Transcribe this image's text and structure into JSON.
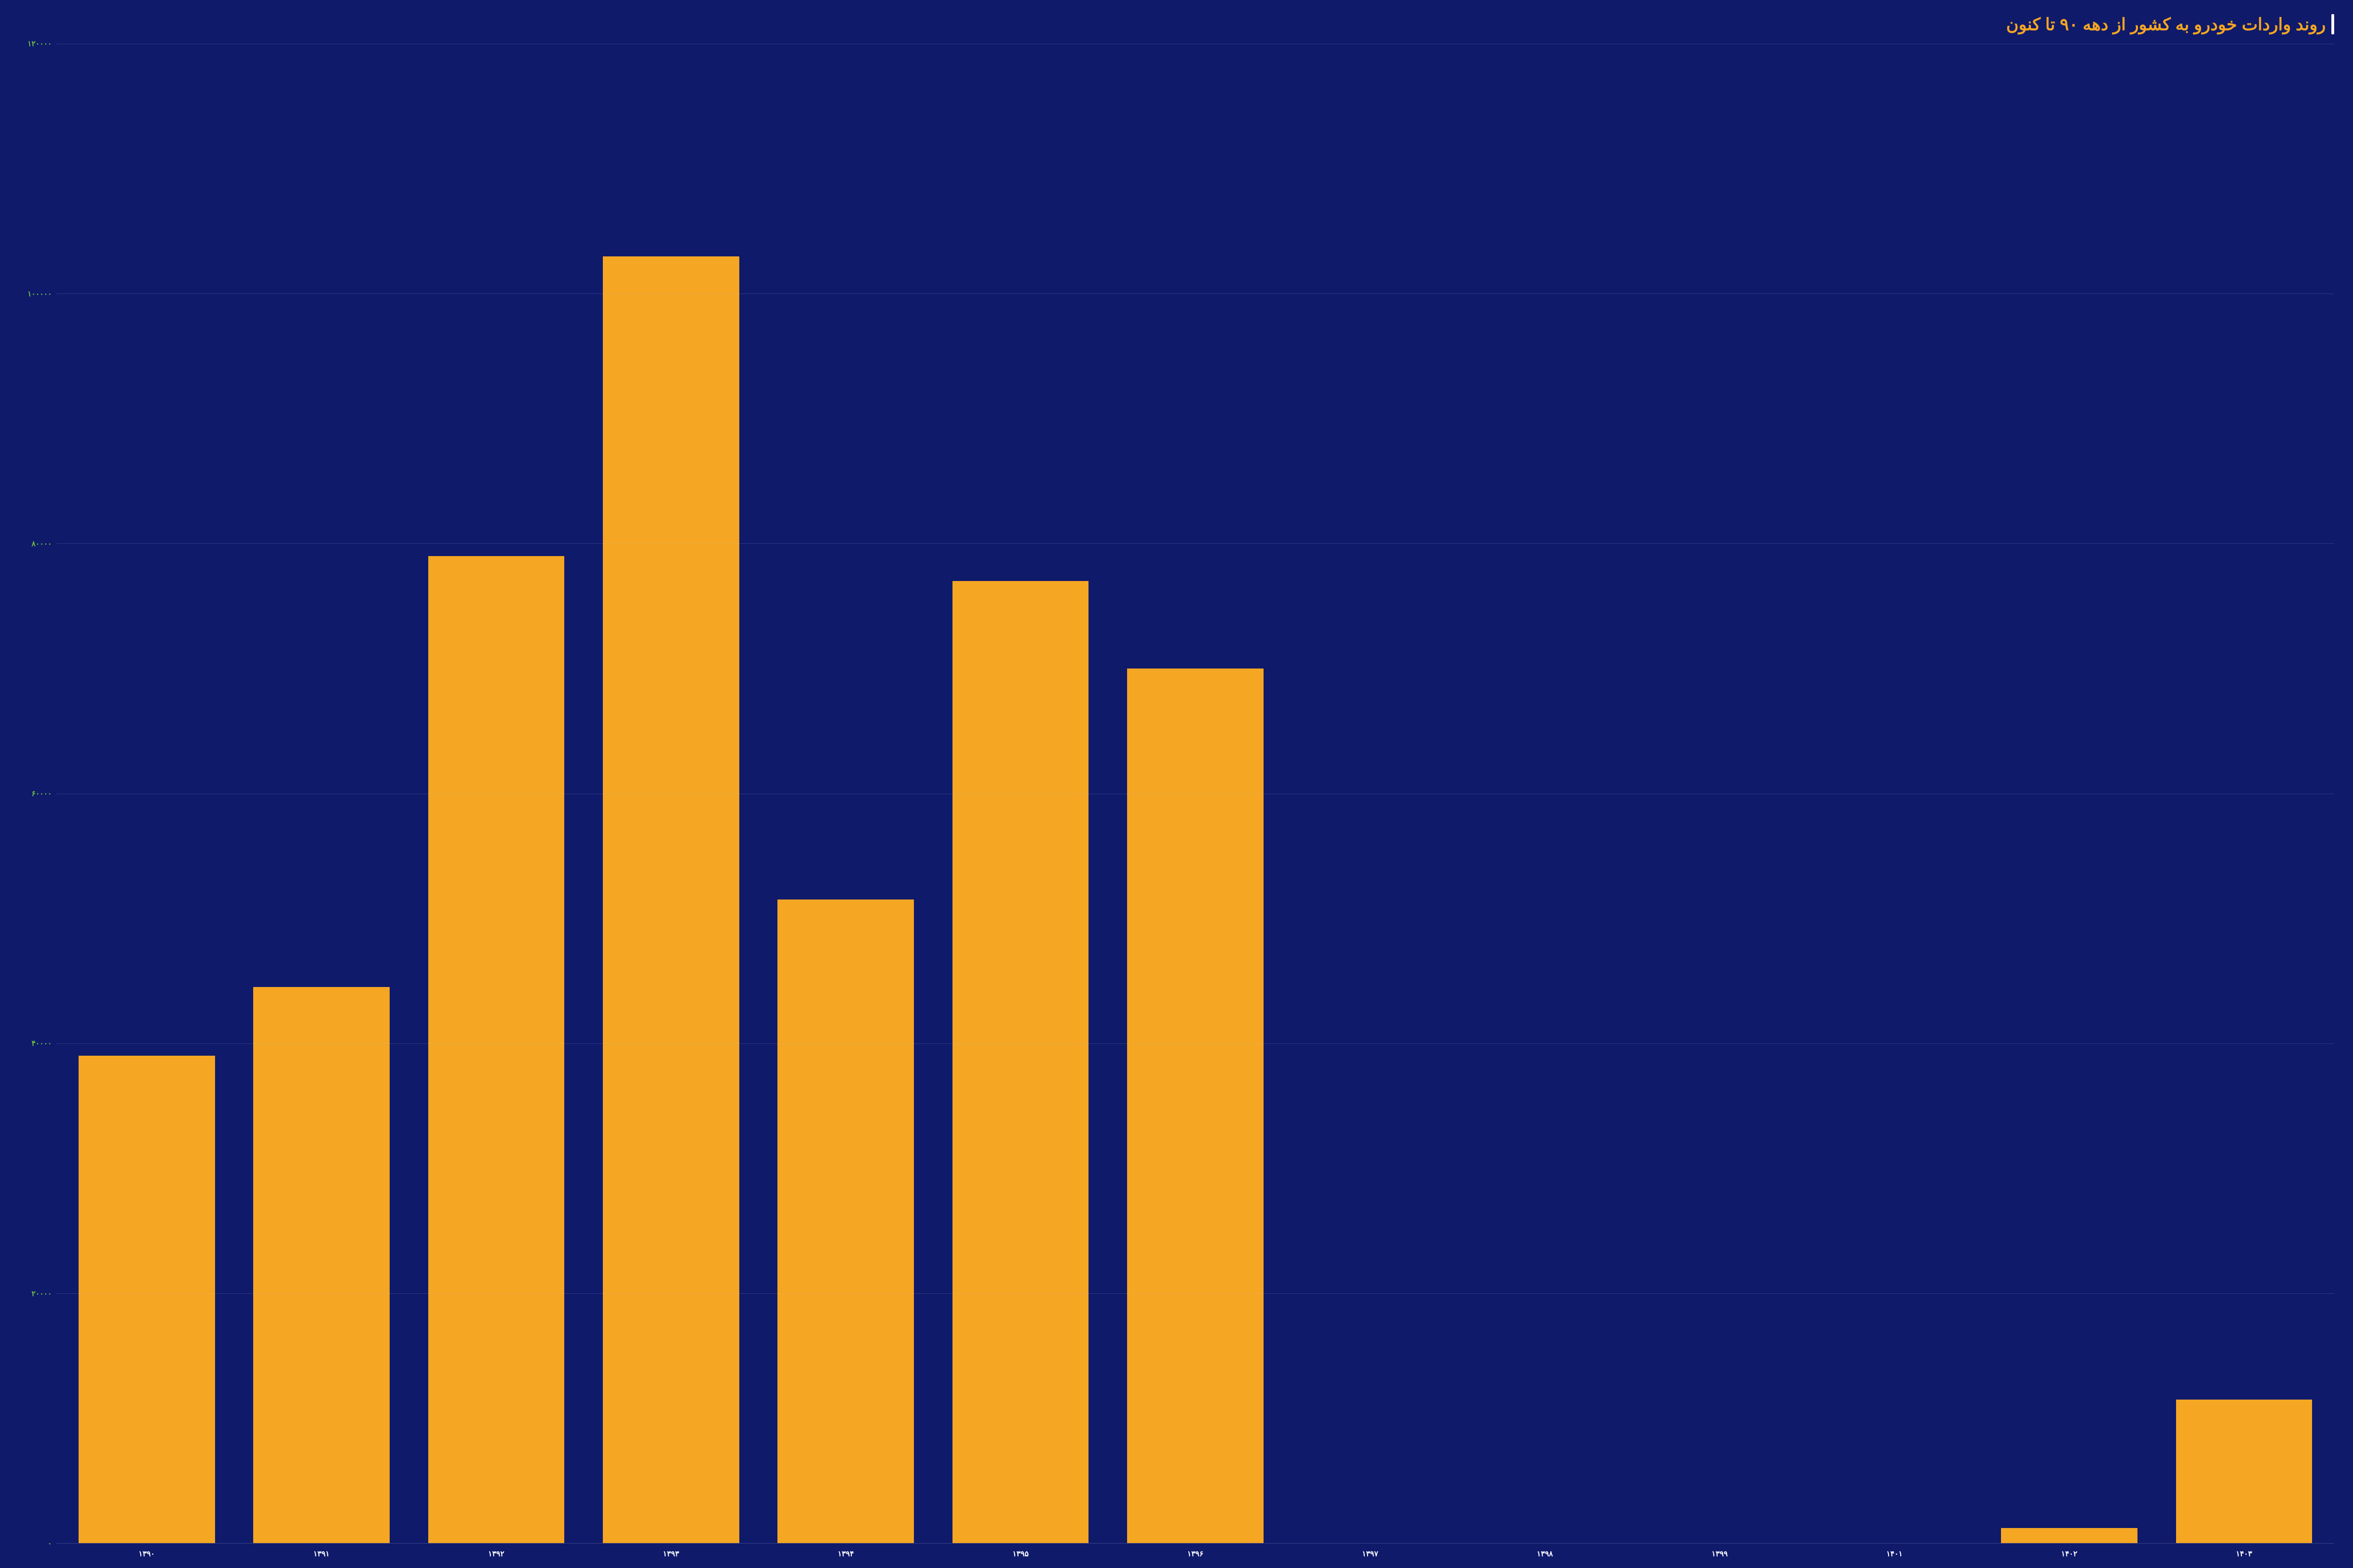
{
  "title": "روند واردات خودرو به کشور از دهه ۹۰ تا کنون",
  "chart": {
    "type": "bar",
    "background_color": "#0f1a6b",
    "bar_color": "#f5a623",
    "title_color": "#f5a623",
    "title_bar_color": "#ffffff",
    "grid_color": "rgba(200,200,220,0.18)",
    "ytick_color": "#6fbf3f",
    "xtick_color": "#ffffff",
    "title_fontsize": 36,
    "tick_fontsize": 16,
    "bar_width_ratio": 0.78,
    "ylim": [
      0,
      120000
    ],
    "ytick_step": 20000,
    "yticks": [
      {
        "value": 0,
        "label": "۰"
      },
      {
        "value": 20000,
        "label": "۲۰۰۰۰"
      },
      {
        "value": 40000,
        "label": "۴۰۰۰۰"
      },
      {
        "value": 60000,
        "label": "۶۰۰۰۰"
      },
      {
        "value": 80000,
        "label": "۸۰۰۰۰"
      },
      {
        "value": 100000,
        "label": "۱۰۰۰۰۰"
      },
      {
        "value": 120000,
        "label": "۱۲۰۰۰۰"
      }
    ],
    "categories": [
      "۱۳۹۰",
      "۱۳۹۱",
      "۱۳۹۲",
      "۱۳۹۳",
      "۱۳۹۴",
      "۱۳۹۵",
      "۱۳۹۶",
      "۱۳۹۷",
      "۱۳۹۸",
      "۱۳۹۹",
      "۱۴۰۱",
      "۱۴۰۲",
      "۱۴۰۳"
    ],
    "values": [
      39000,
      44500,
      79000,
      103000,
      51500,
      77000,
      70000,
      0,
      0,
      0,
      0,
      1200,
      11500
    ]
  }
}
